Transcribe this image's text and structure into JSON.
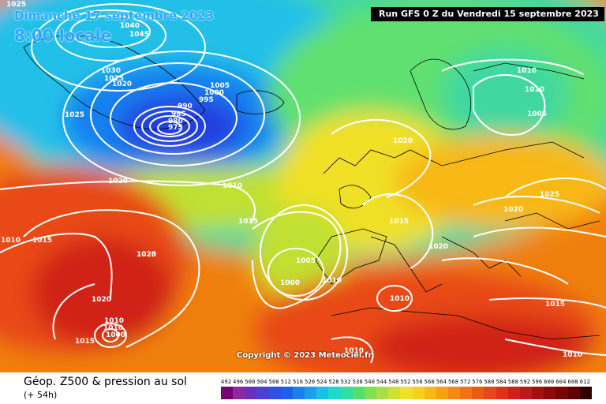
{
  "header": {
    "date": "Dimanche 17 septembre 2023",
    "time": "8:00 locale",
    "run": "Run GFS 0 Z du Vendredi 15 septembre 2023"
  },
  "copyright": "Copyright © 2023 Meteociel.fr",
  "footer": {
    "title": "Géop. Z500 & pression au sol",
    "subtitle": "(+ 54h)"
  },
  "legend": {
    "labels": [
      "492",
      "496",
      "500",
      "504",
      "508",
      "512",
      "516",
      "520",
      "524",
      "528",
      "532",
      "536",
      "540",
      "544",
      "548",
      "552",
      "556",
      "560",
      "564",
      "568",
      "572",
      "576",
      "580",
      "584",
      "588",
      "592",
      "596",
      "600",
      "604",
      "608",
      "612"
    ],
    "colors": [
      "#7a0070",
      "#8d2aa0",
      "#6a2fc0",
      "#4a3fd8",
      "#2f4fe8",
      "#1f5ff0",
      "#1880f0",
      "#15a0f0",
      "#18c0e8",
      "#20d8d0",
      "#30e0a0",
      "#50e070",
      "#80e050",
      "#a8e040",
      "#d0e030",
      "#f0e028",
      "#f8d020",
      "#f8b818",
      "#f8a010",
      "#f88810",
      "#f87010",
      "#f05a10",
      "#e84818",
      "#e03018",
      "#d02018",
      "#c01818",
      "#a81010",
      "#900808",
      "#780404",
      "#600000",
      "#300000"
    ]
  },
  "pressure_labels": [
    "1025",
    "1040",
    "1045",
    "1030",
    "1025",
    "1020",
    "1005",
    "1000",
    "995",
    "990",
    "985",
    "980",
    "975",
    "1025",
    "1020",
    "1010",
    "1015",
    "1020",
    "1010",
    "1010",
    "1005",
    "1020",
    "1025",
    "1020",
    "1015",
    "1020",
    "1005",
    "1000",
    "1010",
    "1010",
    "1010",
    "1015",
    "1025",
    "1020",
    "1010",
    "1000",
    "1015",
    "1015",
    "1010",
    "1010",
    "1010"
  ]
}
